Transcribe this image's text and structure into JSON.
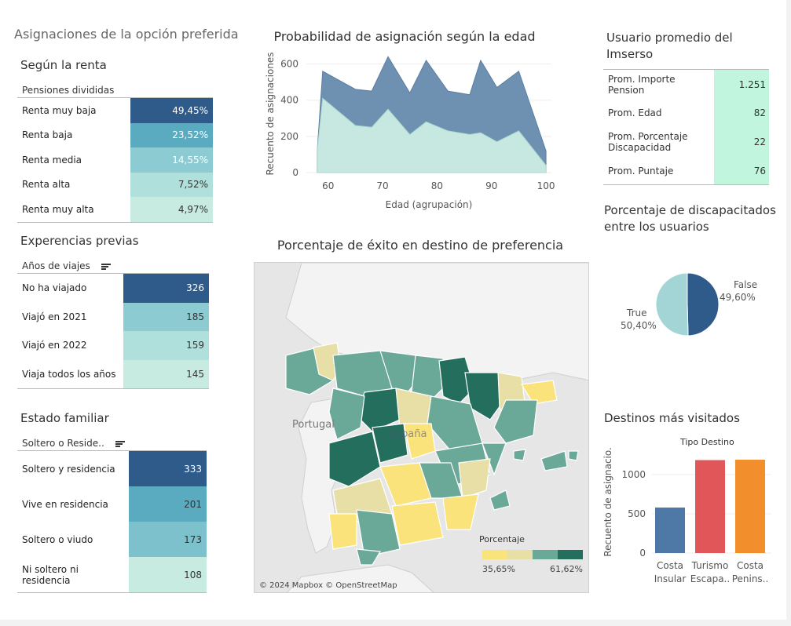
{
  "dashboard_title": "Asignaciones de la opción preferida",
  "renta": {
    "title": "Según la renta",
    "header": "Pensiones divididas",
    "rows": [
      {
        "label": "Renta muy baja",
        "value": "49,45%",
        "color": "#2e5b8a",
        "text": "#ffffff"
      },
      {
        "label": "Renta baja",
        "value": "23,52%",
        "color": "#5aaac0",
        "text": "#ffffff"
      },
      {
        "label": "Renta media",
        "value": "14,55%",
        "color": "#8ccbd1",
        "text": "#ffffff"
      },
      {
        "label": "Renta alta",
        "value": "7,52%",
        "color": "#b0e0db",
        "text": "#333333"
      },
      {
        "label": "Renta muy alta",
        "value": "4,97%",
        "color": "#c7ebe1",
        "text": "#333333"
      }
    ]
  },
  "experiencias": {
    "title": "Experencias previas",
    "header": "Años de viajes",
    "rows": [
      {
        "label": "No ha viajado",
        "value": "326",
        "color": "#2e5b8a",
        "text": "#ffffff"
      },
      {
        "label": "Viajó en 2021",
        "value": "185",
        "color": "#8ccbd1",
        "text": "#333333"
      },
      {
        "label": "Viajó en 2022",
        "value": "159",
        "color": "#b0e0db",
        "text": "#333333"
      },
      {
        "label": "Viaja todos los años",
        "value": "145",
        "color": "#c7ebe1",
        "text": "#333333"
      }
    ]
  },
  "familiar": {
    "title": "Estado familiar",
    "header": "Soltero o Reside..",
    "rows": [
      {
        "label": "Soltero y residencia",
        "value": "333",
        "color": "#2e5b8a",
        "text": "#ffffff"
      },
      {
        "label": "Vive en residencia",
        "value": "201",
        "color": "#5aaac0",
        "text": "#333333"
      },
      {
        "label": "Soltero o viudo",
        "value": "173",
        "color": "#7cc1cc",
        "text": "#333333"
      },
      {
        "label": "Ni soltero ni residencia",
        "value": "108",
        "color": "#c7ebe1",
        "text": "#333333"
      }
    ]
  },
  "area_chart": {
    "title": "Probabilidad de asignación según la edad",
    "ylabel": "Recuento de asignaciones",
    "xlabel": "Edad (agrupación)",
    "xticks": [
      "60",
      "70",
      "80",
      "90",
      "100"
    ],
    "yticks": [
      "0",
      "200",
      "400",
      "600"
    ]
  },
  "kpi": {
    "title": "Usuario promedio del Imserso",
    "rows": [
      {
        "label": "Prom. Importe Pension",
        "value": "1.251"
      },
      {
        "label": "Prom. Edad",
        "value": "82"
      },
      {
        "label": "Prom. Porcentaje Discapacidad",
        "value": "22"
      },
      {
        "label": "Prom. Puntaje",
        "value": "76"
      }
    ]
  },
  "pie": {
    "title": "Porcentaje de discapacitados entre los usuarios",
    "false_label": "False",
    "false_value": "49,60%",
    "true_label": "True",
    "true_value": "50,40%"
  },
  "map": {
    "title": "Porcentaje de éxito en destino de preferencia",
    "label_portugal": "Portugal",
    "label_espana": "España",
    "attribution": "© 2024 Mapbox © OpenStreetMap",
    "legend_title": "Porcentaje",
    "legend_min": "35,65%",
    "legend_max": "61,62%",
    "legend_colors": [
      "#f9e37a",
      "#e8dfa6",
      "#6aa897",
      "#236e5c"
    ]
  },
  "bar": {
    "title": "Destinos más visitados",
    "header": "Tipo Destino",
    "ylabel": "Recuento de asignacio..",
    "yticks": [
      "0",
      "500",
      "1000"
    ],
    "cat1_line1": "Costa",
    "cat1_line2": "Insular",
    "cat2_line1": "Turismo",
    "cat2_line2": "Escapa..",
    "cat3_line1": "Costa",
    "cat3_line2": "Penins.."
  },
  "chart_data": [
    {
      "type": "area",
      "title": "Probabilidad de asignación según la edad",
      "xlabel": "Edad (agrupación)",
      "ylabel": "Recuento de asignaciones",
      "x": [
        58,
        59,
        65,
        68,
        71,
        75,
        78,
        82,
        86,
        88,
        91,
        95,
        100
      ],
      "series": [
        {
          "values": [
            120,
            560,
            460,
            450,
            640,
            440,
            620,
            450,
            430,
            620,
            470,
            560,
            120
          ]
        },
        {
          "values": [
            120,
            410,
            260,
            250,
            350,
            210,
            280,
            230,
            210,
            220,
            170,
            230,
            40
          ]
        }
      ],
      "xlim": [
        56,
        101
      ],
      "ylim": [
        0,
        650
      ]
    },
    {
      "type": "pie",
      "title": "Porcentaje de discapacitados entre los usuarios",
      "categories": [
        "False",
        "True"
      ],
      "values": [
        49.6,
        50.4
      ],
      "colors": [
        "#2e5b8a",
        "#a3d5d6"
      ]
    },
    {
      "type": "bar",
      "title": "Destinos más visitados",
      "ylabel": "Recuento de asignacio..",
      "categories": [
        "Costa Insular",
        "Turismo Escapa..",
        "Costa Penins.."
      ],
      "values": [
        580,
        1185,
        1190
      ],
      "colors": [
        "#4e79a7",
        "#e15759",
        "#f28e2b"
      ],
      "ylim": [
        0,
        1300
      ]
    }
  ]
}
